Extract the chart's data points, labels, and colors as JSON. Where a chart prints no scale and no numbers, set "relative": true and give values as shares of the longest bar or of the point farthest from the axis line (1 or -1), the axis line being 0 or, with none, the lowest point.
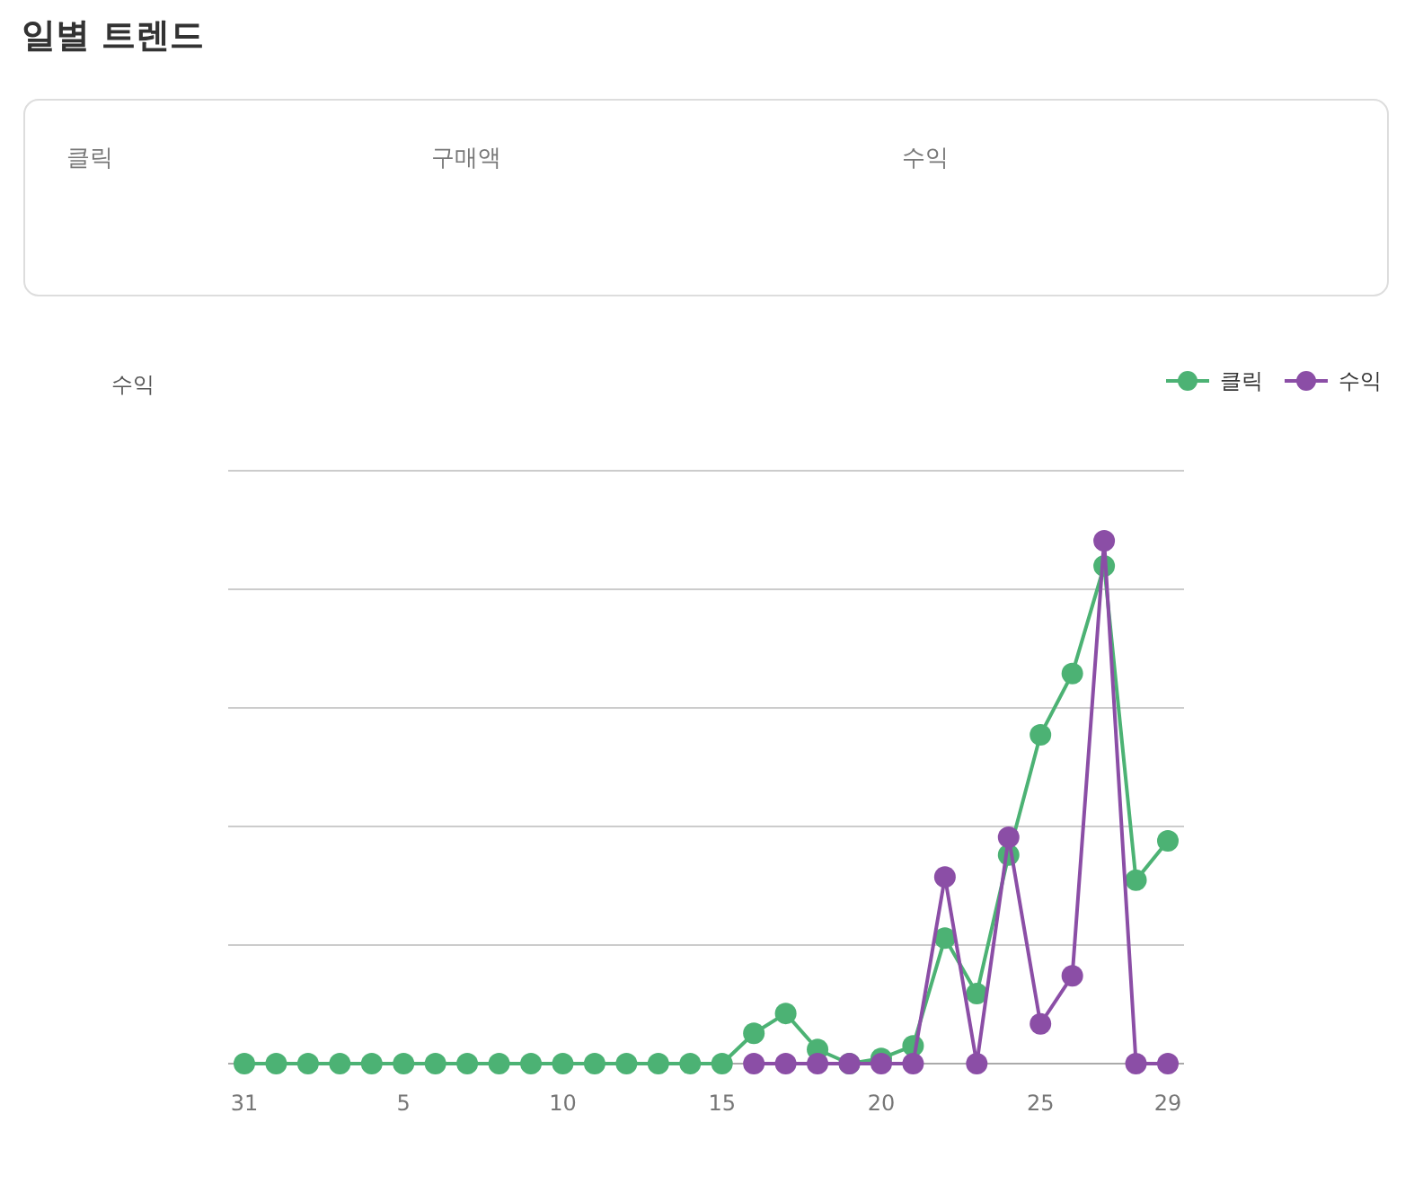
{
  "chart_data": [
    {
      "type": "other",
      "title": "일별 트렌드",
      "annotations": [
        "클릭",
        "구매액",
        "수익"
      ]
    },
    {
      "type": "line",
      "ylabel": "수익",
      "relative": true,
      "grid": "y",
      "legend": "top right",
      "marker": "circle",
      "line_style": "solid",
      "categories": [
        "31",
        null,
        null,
        null,
        null,
        "5",
        null,
        null,
        null,
        null,
        "10",
        null,
        null,
        null,
        null,
        "15",
        null,
        null,
        null,
        null,
        "20",
        null,
        null,
        null,
        null,
        "25",
        null,
        null,
        null,
        "29"
      ],
      "series": [
        {
          "name": "클릭",
          "color": "#4cb274",
          "values": [
            0,
            0,
            0,
            0,
            0,
            0,
            0,
            0,
            0,
            0,
            0,
            0,
            0,
            0,
            0,
            0,
            0.058,
            0.096,
            0.027,
            0,
            0.01,
            0.034,
            0.24,
            0.134,
            0.399,
            0.629,
            0.746,
            0.952,
            0.351,
            0.426
          ]
        },
        {
          "name": "수익",
          "color": "#8b4ea6",
          "values": [
            null,
            null,
            null,
            null,
            null,
            null,
            null,
            null,
            null,
            null,
            null,
            null,
            null,
            null,
            null,
            null,
            0,
            0,
            0,
            0,
            0,
            0,
            0.357,
            0,
            0.433,
            0.076,
            0.168,
            1,
            0,
            0
          ]
        }
      ]
    }
  ]
}
